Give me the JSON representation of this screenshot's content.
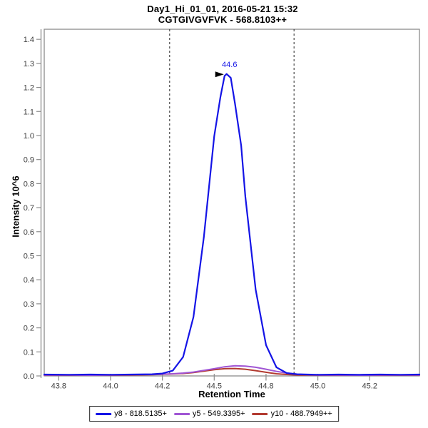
{
  "chart_data": {
    "type": "line",
    "title_line1": "Day1_Hi_01_01, 2016-05-21 15:32",
    "title_line2": "CGTGIVGVFVK - 568.8103++",
    "xlabel": "Retention Time",
    "ylabel": "Intensity 10^6",
    "xlim": [
      43.68,
      45.49
    ],
    "ylim": [
      0,
      1.442
    ],
    "grid": false,
    "legend_position": "bottom",
    "x_ticks": [
      {
        "value": 43.75,
        "label": "43.8"
      },
      {
        "value": 44.0,
        "label": "44.0"
      },
      {
        "value": 44.25,
        "label": "44.2"
      },
      {
        "value": 44.5,
        "label": "44.5"
      },
      {
        "value": 44.75,
        "label": "44.8"
      },
      {
        "value": 45.0,
        "label": "45.0"
      },
      {
        "value": 45.25,
        "label": "45.2"
      }
    ],
    "y_ticks": [
      {
        "value": 0.0,
        "label": "0.0"
      },
      {
        "value": 0.1,
        "label": "0.1"
      },
      {
        "value": 0.2,
        "label": "0.2"
      },
      {
        "value": 0.3,
        "label": "0.3"
      },
      {
        "value": 0.4,
        "label": "0.4"
      },
      {
        "value": 0.5,
        "label": "0.5"
      },
      {
        "value": 0.6,
        "label": "0.6"
      },
      {
        "value": 0.7,
        "label": "0.7"
      },
      {
        "value": 0.8,
        "label": "0.8"
      },
      {
        "value": 0.9,
        "label": "0.9"
      },
      {
        "value": 1.0,
        "label": "1.0"
      },
      {
        "value": 1.1,
        "label": "1.1"
      },
      {
        "value": 1.2,
        "label": "1.2"
      },
      {
        "value": 1.3,
        "label": "1.3"
      },
      {
        "value": 1.4,
        "label": "1.4"
      }
    ],
    "integration_boundaries": [
      44.285,
      44.885
    ],
    "peak_annotation": {
      "text": "44.6",
      "x": 44.56,
      "y": 1.256
    },
    "series": [
      {
        "name": "y8 - 818.5135+",
        "color": "#1414e6",
        "x": [
          43.68,
          43.8,
          43.9,
          44.0,
          44.1,
          44.2,
          44.25,
          44.3,
          44.35,
          44.4,
          44.45,
          44.5,
          44.53,
          44.55,
          44.56,
          44.58,
          44.6,
          44.63,
          44.65,
          44.7,
          44.75,
          44.8,
          44.85,
          44.9,
          44.95,
          45.0,
          45.1,
          45.2,
          45.3,
          45.4,
          45.49
        ],
        "y": [
          0.006,
          0.005,
          0.006,
          0.005,
          0.006,
          0.007,
          0.01,
          0.022,
          0.079,
          0.245,
          0.578,
          0.997,
          1.16,
          1.248,
          1.256,
          1.24,
          1.133,
          0.958,
          0.747,
          0.359,
          0.128,
          0.036,
          0.012,
          0.007,
          0.006,
          0.005,
          0.006,
          0.005,
          0.006,
          0.005,
          0.006
        ]
      },
      {
        "name": "y5 - 549.3395+",
        "color": "#a055d4",
        "x": [
          43.68,
          43.8,
          43.9,
          44.0,
          44.1,
          44.2,
          44.3,
          44.35,
          44.4,
          44.45,
          44.5,
          44.55,
          44.6,
          44.65,
          44.7,
          44.75,
          44.8,
          44.85,
          44.9,
          44.95,
          45.0,
          45.1,
          45.2,
          45.3,
          45.4,
          45.49
        ],
        "y": [
          0.004,
          0.004,
          0.003,
          0.004,
          0.005,
          0.006,
          0.009,
          0.012,
          0.016,
          0.023,
          0.03,
          0.038,
          0.042,
          0.041,
          0.036,
          0.028,
          0.019,
          0.012,
          0.007,
          0.005,
          0.004,
          0.004,
          0.003,
          0.004,
          0.004,
          0.004
        ]
      },
      {
        "name": "y10 - 488.7949++",
        "color": "#b23a30",
        "x": [
          43.68,
          43.8,
          43.9,
          44.0,
          44.1,
          44.2,
          44.3,
          44.35,
          44.4,
          44.45,
          44.5,
          44.55,
          44.6,
          44.65,
          44.7,
          44.75,
          44.8,
          44.85,
          44.9,
          44.95,
          45.0,
          45.1,
          45.2,
          45.3,
          45.4,
          45.49
        ],
        "y": [
          0.003,
          0.003,
          0.004,
          0.003,
          0.004,
          0.005,
          0.008,
          0.01,
          0.014,
          0.02,
          0.026,
          0.03,
          0.031,
          0.028,
          0.022,
          0.015,
          0.009,
          0.006,
          0.004,
          0.004,
          0.003,
          0.003,
          0.004,
          0.003,
          0.003,
          0.003
        ]
      }
    ],
    "colors": {
      "plot_border": "#8c8c8c",
      "tick_label": "#404040",
      "boundary_line": "#222222",
      "annotation_text": "#1414e6",
      "annotation_arrow": "#000000"
    }
  }
}
